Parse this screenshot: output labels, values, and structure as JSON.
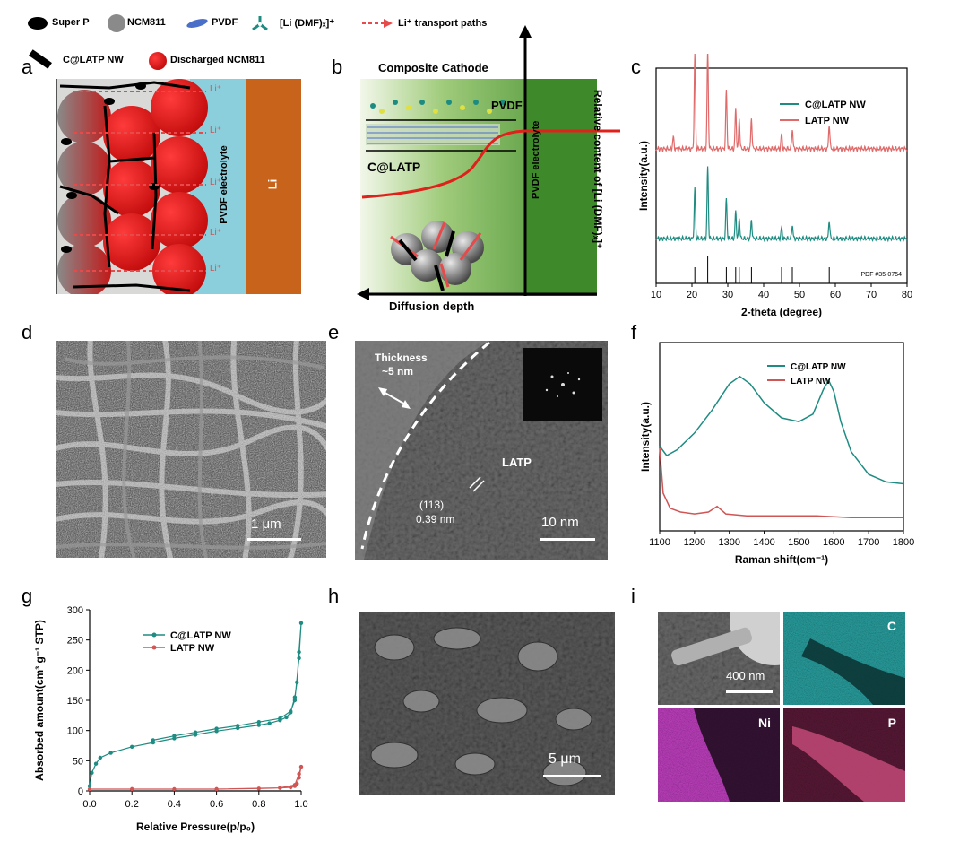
{
  "panel_labels": {
    "a": "a",
    "b": "b",
    "c": "c",
    "d": "d",
    "e": "e",
    "f": "f",
    "g": "g",
    "h": "h",
    "i": "i"
  },
  "legend_top": {
    "super_p": "Super P",
    "ncm811": "NCM811",
    "pvdf": "PVDF",
    "li_dmf": "[Li (DMF)ₓ]⁺",
    "li_paths": "Li⁺ transport paths",
    "c_latp_nw": "C@LATP NW",
    "discharged_ncm811": "Discharged NCM811"
  },
  "panel_a": {
    "li_labels": [
      "Li⁺",
      "Li⁺",
      "Li⁺",
      "Li⁺",
      "Li⁺"
    ],
    "electrolyte": "PVDF electrolyte",
    "li_metal": "Li",
    "colors": {
      "electrolyte": "#8ccfdc",
      "lithium": "#c8631b",
      "particle": "#d10f0f"
    }
  },
  "panel_b": {
    "title": "Composite Cathode",
    "pvdf": "PVDF",
    "c_latp": "C@LATP",
    "electrolyte": "PVDF electrolyte",
    "xlabel": "Diffusion depth",
    "ylabel": "Relative content of [Li (DMF)ₓ]⁺",
    "colors": {
      "bg": "#3e8a2a",
      "curve": "#e0201a"
    }
  },
  "chart_data": [
    {
      "type": "line",
      "panel": "c",
      "xlabel": "2-theta (degree)",
      "ylabel": "Intensity(a.u.)",
      "xlim": [
        10,
        80
      ],
      "xticks": [
        10,
        20,
        30,
        40,
        50,
        60,
        70,
        80
      ],
      "reference": "PDF #35-0754",
      "reference_peaks": [
        20.8,
        24.4,
        29.6,
        32.2,
        33.2,
        36.6,
        45.0,
        48.0,
        58.3
      ],
      "series": [
        {
          "name": "C@LATP NW",
          "color": "#1e8c82",
          "peaks": [
            [
              20.8,
              0.55
            ],
            [
              24.4,
              0.8
            ],
            [
              29.6,
              0.45
            ],
            [
              32.2,
              0.3
            ],
            [
              33.2,
              0.22
            ],
            [
              36.6,
              0.2
            ],
            [
              45.0,
              0.12
            ],
            [
              48.0,
              0.15
            ],
            [
              58.3,
              0.2
            ]
          ]
        },
        {
          "name": "LATP NW",
          "color": "#e06a6a",
          "peaks": [
            [
              14.8,
              0.12
            ],
            [
              20.8,
              0.95
            ],
            [
              24.4,
              1.0
            ],
            [
              29.6,
              0.6
            ],
            [
              32.2,
              0.4
            ],
            [
              33.2,
              0.3
            ],
            [
              36.6,
              0.3
            ],
            [
              45.0,
              0.15
            ],
            [
              48.0,
              0.2
            ],
            [
              58.3,
              0.25
            ]
          ]
        }
      ]
    },
    {
      "type": "line",
      "panel": "f",
      "xlabel": "Raman shift(cm⁻¹)",
      "ylabel": "Intensity(a.u.)",
      "xlim": [
        1100,
        1800
      ],
      "xticks": [
        1100,
        1200,
        1300,
        1400,
        1500,
        1600,
        1700,
        1800
      ],
      "series": [
        {
          "name": "C@LATP NW",
          "color": "#1e8c82",
          "x": [
            1100,
            1120,
            1150,
            1200,
            1250,
            1300,
            1330,
            1360,
            1400,
            1450,
            1500,
            1540,
            1570,
            1585,
            1600,
            1620,
            1650,
            1700,
            1750,
            1800
          ],
          "y": [
            0.45,
            0.4,
            0.43,
            0.52,
            0.64,
            0.78,
            0.82,
            0.78,
            0.68,
            0.6,
            0.58,
            0.62,
            0.75,
            0.8,
            0.74,
            0.58,
            0.42,
            0.3,
            0.26,
            0.25
          ]
        },
        {
          "name": "LATP NW",
          "color": "#d05555",
          "x": [
            1100,
            1110,
            1130,
            1160,
            1200,
            1240,
            1265,
            1290,
            1350,
            1450,
            1550,
            1650,
            1750,
            1800
          ],
          "y": [
            0.44,
            0.2,
            0.12,
            0.1,
            0.09,
            0.1,
            0.13,
            0.09,
            0.08,
            0.08,
            0.08,
            0.07,
            0.07,
            0.07
          ]
        }
      ]
    },
    {
      "type": "line",
      "panel": "g",
      "xlabel": "Relative Pressure(p/p₀)",
      "ylabel": "Absorbed amount(cm³ g⁻¹ STP)",
      "xlim": [
        0.0,
        1.0
      ],
      "ylim": [
        0,
        300
      ],
      "xticks": [
        0.0,
        0.2,
        0.4,
        0.6,
        0.8,
        1.0
      ],
      "yticks": [
        0,
        50,
        100,
        150,
        200,
        250,
        300
      ],
      "series": [
        {
          "name": "C@LATP NW",
          "color": "#1e8c82",
          "x": [
            0.0,
            0.01,
            0.03,
            0.05,
            0.1,
            0.2,
            0.3,
            0.4,
            0.5,
            0.6,
            0.7,
            0.8,
            0.85,
            0.9,
            0.93,
            0.95,
            0.97,
            0.98,
            0.99,
            1.0,
            0.99,
            0.97,
            0.95,
            0.9,
            0.8,
            0.7,
            0.6,
            0.5,
            0.4,
            0.3
          ],
          "y": [
            8,
            30,
            45,
            55,
            63,
            73,
            80,
            87,
            93,
            99,
            104,
            109,
            112,
            117,
            122,
            130,
            155,
            180,
            230,
            278,
            220,
            150,
            132,
            120,
            114,
            108,
            103,
            97,
            91,
            84
          ]
        },
        {
          "name": "LATP NW",
          "color": "#d05555",
          "x": [
            0.0,
            0.2,
            0.4,
            0.6,
            0.8,
            0.9,
            0.95,
            0.97,
            0.98,
            0.99,
            1.0,
            0.99,
            0.97,
            0.9,
            0.6,
            0.2
          ],
          "y": [
            3,
            3,
            3,
            3,
            4,
            5,
            6,
            8,
            12,
            22,
            40,
            28,
            10,
            5,
            3,
            3
          ]
        }
      ]
    }
  ],
  "panel_d": {
    "scalebar": "1 μm"
  },
  "panel_e": {
    "thickness_line1": "Thickness",
    "thickness_line2": "~5 nm",
    "latp": "LATP",
    "plane": "(113)",
    "spacing": "0.39 nm",
    "scalebar": "10 nm"
  },
  "panel_h": {
    "scalebar": "5 μm"
  },
  "panel_i": {
    "scalebar": "400 nm",
    "c": "C",
    "ni": "Ni",
    "p": "P"
  }
}
